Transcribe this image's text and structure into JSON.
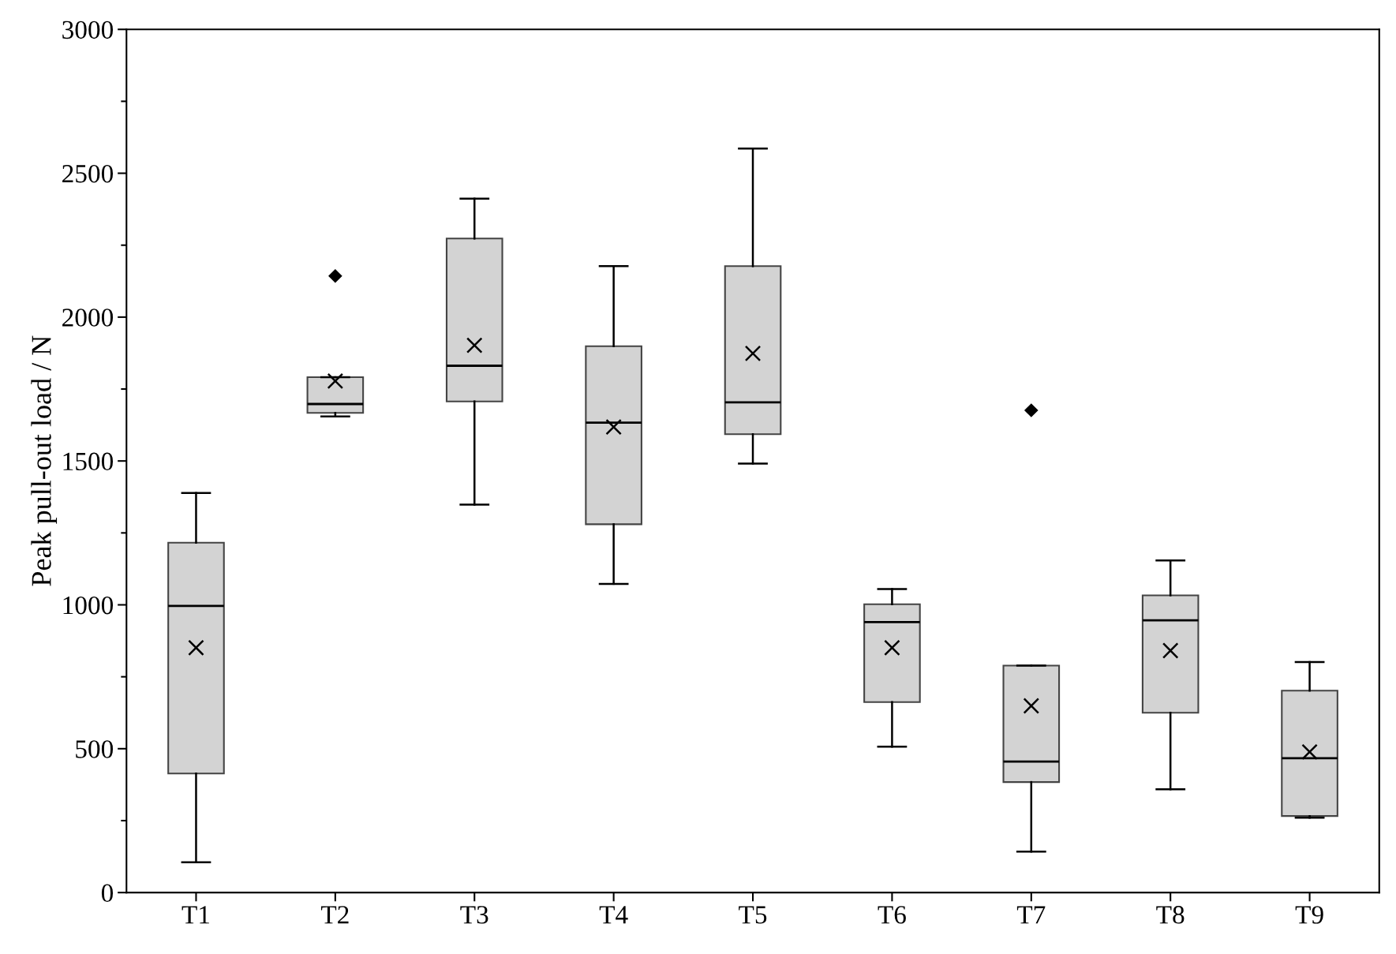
{
  "chart_data": {
    "type": "box",
    "ylabel": "Peak pull-out load / N",
    "categories": [
      "T1",
      "T2",
      "T3",
      "T4",
      "T5",
      "T6",
      "T7",
      "T8",
      "T9"
    ],
    "boxes": [
      {
        "low": 105,
        "q1": 414,
        "median": 996,
        "q3": 1216,
        "high": 1389,
        "mean": 851
      },
      {
        "low": 1655,
        "q1": 1667,
        "median": 1698,
        "q3": 1791,
        "high": 1791,
        "mean": 1778,
        "outliers": [
          2143
        ]
      },
      {
        "low": 1348,
        "q1": 1707,
        "median": 1831,
        "q3": 2273,
        "high": 2412,
        "mean": 1902
      },
      {
        "low": 1073,
        "q1": 1280,
        "median": 1633,
        "q3": 1899,
        "high": 2177,
        "mean": 1618
      },
      {
        "low": 1491,
        "q1": 1593,
        "median": 1704,
        "q3": 2177,
        "high": 2586,
        "mean": 1874
      },
      {
        "low": 507,
        "q1": 662,
        "median": 940,
        "q3": 1002,
        "high": 1055,
        "mean": 851
      },
      {
        "low": 142,
        "q1": 384,
        "median": 455,
        "q3": 789,
        "high": 789,
        "mean": 649,
        "outliers": [
          1676
        ]
      },
      {
        "low": 359,
        "q1": 625,
        "median": 946,
        "q3": 1033,
        "high": 1154,
        "mean": 841
      },
      {
        "low": 260,
        "q1": 266,
        "median": 467,
        "q3": 702,
        "high": 801,
        "mean": 489
      }
    ],
    "color": "#d3d3d3",
    "ylim": [
      0,
      3000
    ],
    "yticks": [
      0,
      500,
      1000,
      1500,
      2000,
      2500,
      3000
    ],
    "grid": false
  }
}
